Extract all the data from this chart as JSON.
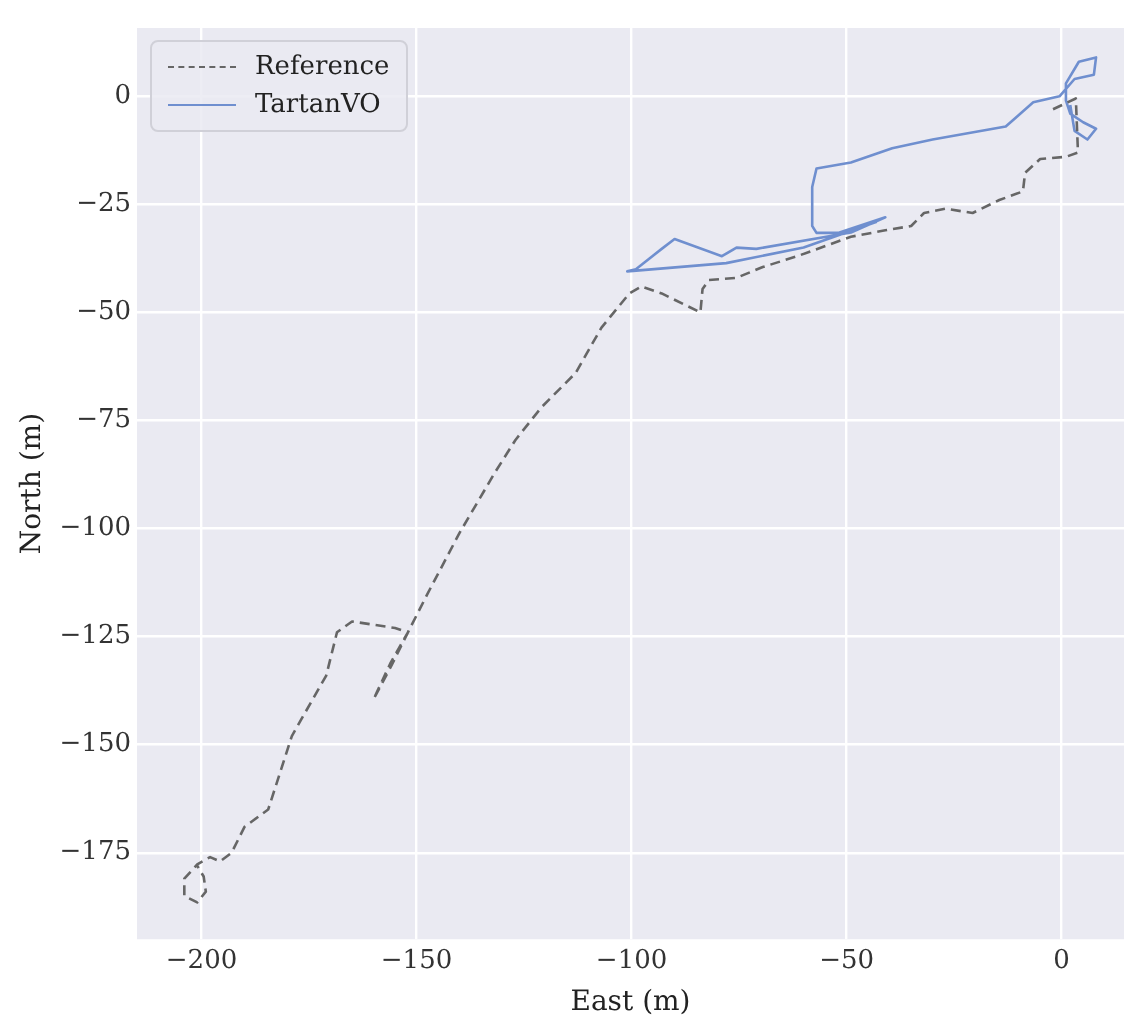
{
  "chart_data": {
    "type": "line",
    "xlabel": "East (m)",
    "ylabel": "North (m)",
    "legend": "top left",
    "grid": true,
    "marker": "none",
    "xlim": [
      -215,
      14.5
    ],
    "ylim": [
      -195,
      15.8
    ],
    "xticks": [
      {
        "value": -200,
        "label": "−200"
      },
      {
        "value": -150,
        "label": "−150"
      },
      {
        "value": -100,
        "label": "−100"
      },
      {
        "value": -50,
        "label": "−50"
      },
      0
    ],
    "yticks": [
      0,
      {
        "value": -25,
        "label": "−25"
      },
      {
        "value": -50,
        "label": "−50"
      },
      {
        "value": -75,
        "label": "−75"
      },
      {
        "value": -100,
        "label": "−100"
      },
      {
        "value": -125,
        "label": "−125"
      },
      {
        "value": -150,
        "label": "−150"
      },
      {
        "value": -175,
        "label": "−175"
      }
    ],
    "series": [
      {
        "name": "Reference",
        "color": "#666666",
        "line_style": "dashed",
        "x": [
          -2,
          3.3,
          3.8,
          1,
          -5,
          -8.5,
          -9,
          -14.5,
          -20.7,
          -27,
          -32,
          -35,
          -41,
          -49,
          -61.5,
          -69.5,
          -75.6,
          -82,
          -83.5,
          -84,
          -93,
          -97.7,
          -100.5,
          -107,
          -113,
          -121,
          -127,
          -132,
          -140,
          -147.4,
          -152,
          -156,
          -160,
          -156,
          -152,
          -155,
          -165,
          -168.5,
          -171,
          -179,
          -184.5,
          -190,
          -193,
          -195.7,
          -198,
          -201,
          -204,
          -204,
          -201,
          -199,
          -199.5,
          -201
        ],
        "values": [
          -3,
          -0.5,
          -13,
          -14,
          -14.5,
          -17.7,
          -22,
          -24,
          -27,
          -26,
          -27,
          -30,
          -31,
          -32.5,
          -37,
          -39.5,
          -42,
          -42.5,
          -44.6,
          -50,
          -45.6,
          -44,
          -45.6,
          -53.5,
          -64,
          -72,
          -79.5,
          -87.4,
          -101,
          -115,
          -124,
          -131,
          -139.5,
          -132,
          -124,
          -123,
          -121.5,
          -124,
          -134,
          -148,
          -165,
          -169,
          -175,
          -177,
          -176,
          -177.7,
          -181,
          -185,
          -186.5,
          -184,
          -180.5,
          -178
        ]
      },
      {
        "name": "TartanVO",
        "color": "#6f8fcf",
        "line_style": "solid",
        "x": [
          2,
          3,
          6,
          8,
          5,
          2,
          1,
          1,
          4,
          8,
          7.5,
          3,
          -0.5,
          -6.6,
          -13,
          -30,
          -39.4,
          -49,
          -57,
          -58,
          -58,
          -57,
          -52,
          -41,
          -49,
          -71,
          -75.6,
          -79,
          -90,
          -93,
          -99,
          -101,
          -78,
          -60,
          -43
        ],
        "values": [
          -2,
          -8,
          -10,
          -7.5,
          -6,
          -4,
          -1,
          3,
          8,
          9,
          5,
          4,
          0,
          -1.4,
          -7,
          -10,
          -12,
          -15.3,
          -16.7,
          -21,
          -30,
          -31.6,
          -31.6,
          -28,
          -31.5,
          -35.3,
          -35,
          -37,
          -33,
          -35.3,
          -40,
          -40.5,
          -38.6,
          -35,
          -29
        ]
      }
    ]
  }
}
